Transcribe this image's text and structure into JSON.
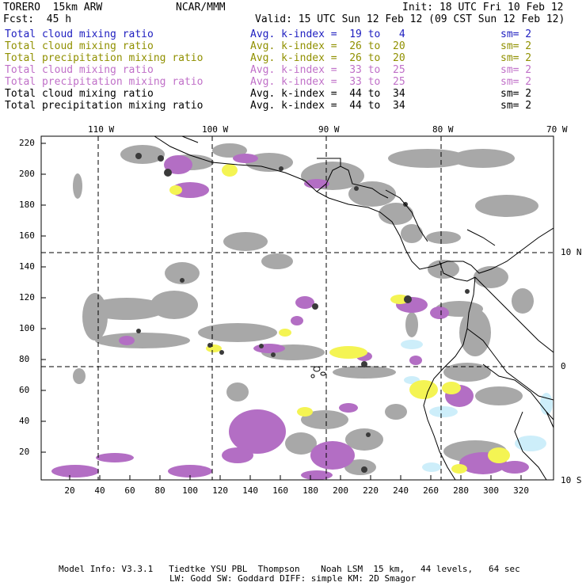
{
  "header": {
    "model": "TORERO  15km ARW",
    "center": "NCAR/MMM",
    "init": "Init: 18 UTC Fri 10 Feb 12",
    "fcst": "Fcst:  45 h",
    "valid": "Valid: 15 UTC Sun 12 Feb 12 (09 CST Sun 12 Feb 12)"
  },
  "legend": {
    "rows": [
      {
        "field": "Total cloud mixing ratio",
        "kindex": "Avg. k-index =  19 to   4",
        "sm": "sm= 2",
        "color": "#2020c0"
      },
      {
        "field": "Total cloud mixing ratio",
        "kindex": "Avg. k-index =  26 to  20",
        "sm": "sm= 2",
        "color": "#909000"
      },
      {
        "field": "Total precipitation mixing ratio",
        "kindex": "Avg. k-index =  26 to  20",
        "sm": "sm= 2",
        "color": "#909000"
      },
      {
        "field": "Total cloud mixing ratio",
        "kindex": "Avg. k-index =  33 to  25",
        "sm": "sm= 2",
        "color": "#c070c8"
      },
      {
        "field": "Total precipitation mixing ratio",
        "kindex": "Avg. k-index =  33 to  25",
        "sm": "sm= 2",
        "color": "#c070c8"
      },
      {
        "field": "Total cloud mixing ratio",
        "kindex": "Avg. k-index =  44 to  34",
        "sm": "sm= 2",
        "color": "#000000"
      },
      {
        "field": "Total precipitation mixing ratio",
        "kindex": "Avg. k-index =  44 to  34",
        "sm": "sm= 2",
        "color": "#000000"
      }
    ]
  },
  "map": {
    "lon_labels": [
      "110 W",
      "100 W",
      "90 W",
      "80 W",
      "70 W"
    ],
    "lat_labels": [
      "10 N",
      "0",
      "10 S"
    ],
    "y_ticks": [
      "220",
      "200",
      "180",
      "160",
      "140",
      "120",
      "100",
      "80",
      "60",
      "40",
      "20"
    ],
    "x_ticks": [
      "20",
      "40",
      "60",
      "80",
      "100",
      "120",
      "140",
      "160",
      "180",
      "200",
      "220",
      "240",
      "260",
      "280",
      "300",
      "320"
    ],
    "colors": {
      "gray": "#a8a8a8",
      "dark": "#3a3a3a",
      "purple": "#b36ec4",
      "yellow": "#f4f453",
      "cyan": "#cdeefa"
    }
  },
  "footer": {
    "line1": "Model Info: V3.3.1   Tiedtke YSU PBL  Thompson    Noah LSM  15 km,   44 levels,   64 sec",
    "line2": "LW: Godd SW: Goddard DIFF: simple KM: 2D Smagor"
  }
}
